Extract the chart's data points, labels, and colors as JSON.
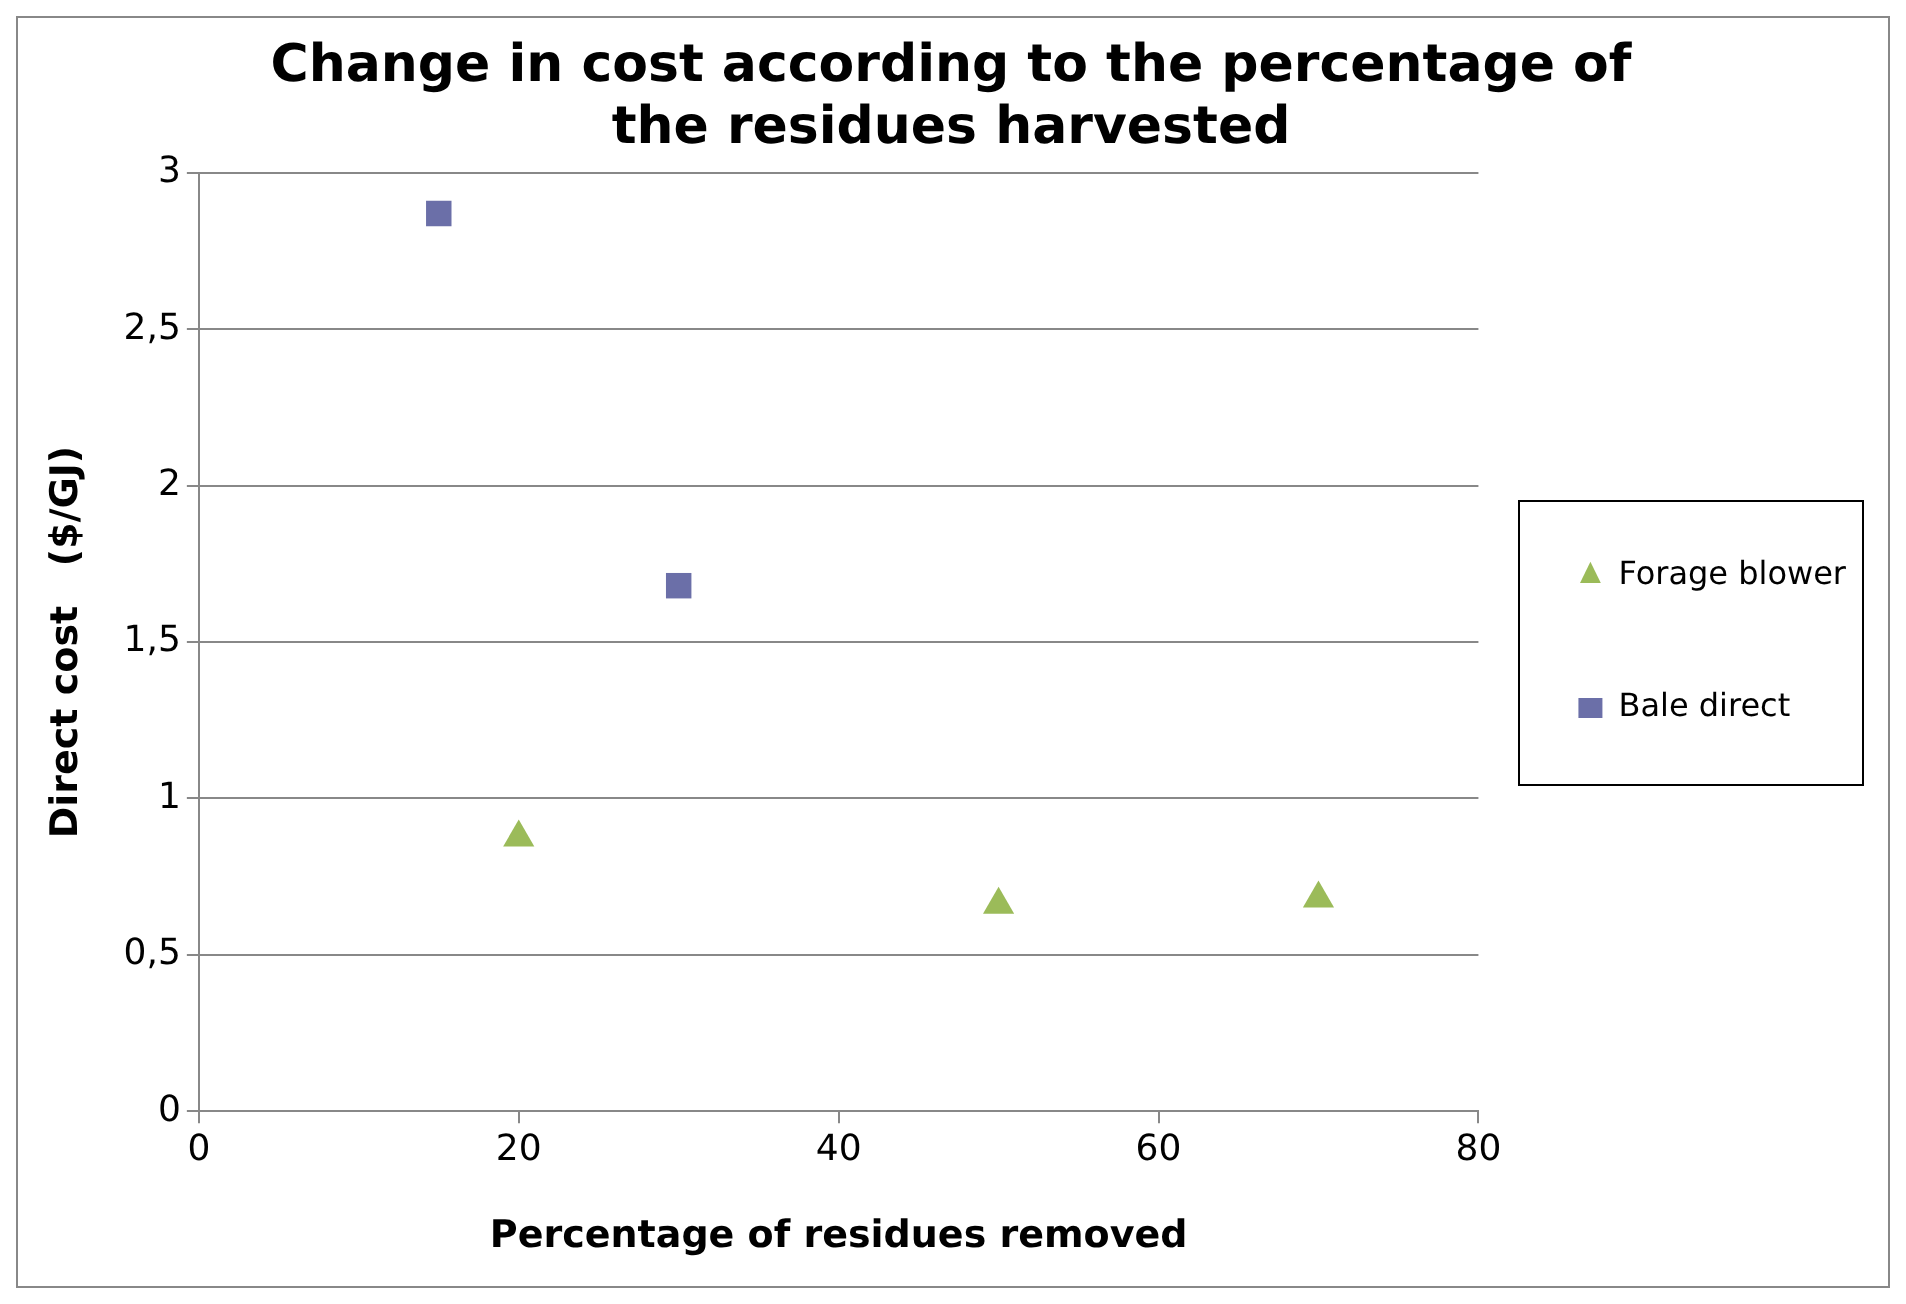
{
  "chart_data": {
    "type": "scatter",
    "title": "Change in cost according to the percentage of the residues harvested",
    "xlabel": "Percentage of residues removed",
    "ylabel": "Direct cost   ($/GJ)",
    "series": [
      {
        "name": "Forage blower",
        "color": "#9bbb59",
        "marker": "triangle",
        "x": [
          20,
          50,
          70
        ],
        "values": [
          0.875,
          0.66,
          0.68
        ]
      },
      {
        "name": "Bale direct",
        "color": "#6b6fa8",
        "marker": "square",
        "x": [
          15,
          30
        ],
        "values": [
          2.87,
          1.68
        ]
      }
    ],
    "xlim": [
      0,
      80
    ],
    "xticks": [
      0,
      20,
      40,
      60,
      80
    ],
    "ylim": [
      0,
      3
    ],
    "yticks": [
      0,
      {
        "value": 0.5,
        "label": "0,5"
      },
      1,
      {
        "value": 1.5,
        "label": "1,5"
      },
      2,
      {
        "value": 2.5,
        "label": "2,5"
      },
      3
    ],
    "grid": "y",
    "legend": "right"
  }
}
